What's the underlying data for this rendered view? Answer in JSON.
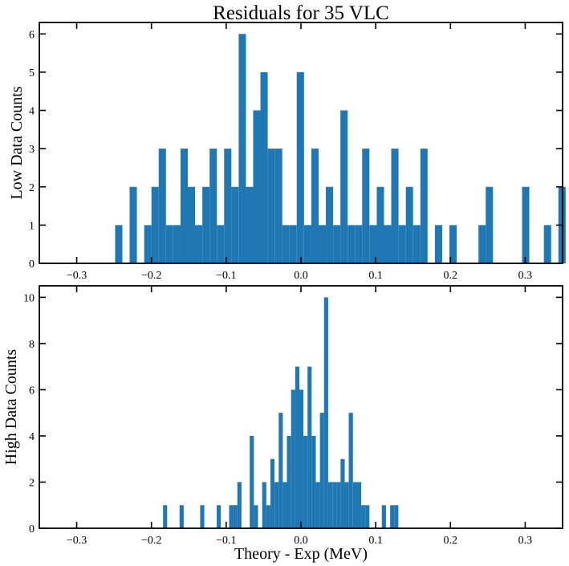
{
  "chart_data": [
    {
      "type": "bar",
      "title": "Residuals for 35 VLC",
      "xlabel": "",
      "ylabel": "Low Data Counts",
      "xlim": [
        -0.35,
        0.35
      ],
      "ylim": [
        0,
        6.3
      ],
      "xticks": [
        -0.3,
        -0.2,
        -0.1,
        0.0,
        0.1,
        0.2,
        0.3
      ],
      "xtick_labels": [
        "−0.3",
        "−0.2",
        "−0.1",
        "0.0",
        "0.1",
        "0.2",
        "0.3"
      ],
      "yticks": [
        0,
        1,
        2,
        3,
        4,
        5,
        6
      ],
      "ytick_labels": [
        "0",
        "1",
        "2",
        "3",
        "4",
        "5",
        "6"
      ],
      "bar_color": "#1f77b4",
      "bin_width": 0.00972,
      "bins_left": [
        -0.2486,
        -0.2292,
        -0.2097,
        -0.2,
        -0.1903,
        -0.1806,
        -0.1708,
        -0.1611,
        -0.1514,
        -0.1417,
        -0.1319,
        -0.1222,
        -0.1125,
        -0.1028,
        -0.0931,
        -0.0833,
        -0.0736,
        -0.0639,
        -0.0542,
        -0.0444,
        -0.0347,
        -0.025,
        -0.0153,
        -0.0056,
        0.0042,
        0.0139,
        0.0236,
        0.0333,
        0.0431,
        0.0528,
        0.0625,
        0.0722,
        0.0819,
        0.0917,
        0.1014,
        0.1111,
        0.1208,
        0.1306,
        0.1403,
        0.15,
        0.1597,
        0.1792,
        0.1986,
        0.2375,
        0.2472,
        0.2958,
        0.325,
        0.3444
      ],
      "values": [
        1,
        2,
        1,
        2,
        3,
        1,
        1,
        3,
        2,
        1,
        2,
        3,
        1,
        3,
        2,
        6,
        2,
        4,
        5,
        3,
        3,
        1,
        1,
        5,
        1,
        3,
        1,
        2,
        1,
        4,
        1,
        1,
        3,
        1,
        2,
        1,
        3,
        1,
        2,
        1,
        3,
        1,
        1,
        1,
        2,
        2,
        1,
        2
      ]
    },
    {
      "type": "bar",
      "title": "",
      "xlabel": "Theory - Exp (MeV)",
      "ylabel": "High Data Counts",
      "xlim": [
        -0.35,
        0.35
      ],
      "ylim": [
        0,
        10.5
      ],
      "xticks": [
        -0.3,
        -0.2,
        -0.1,
        0.0,
        0.1,
        0.2,
        0.3
      ],
      "xtick_labels": [
        "−0.3",
        "−0.2",
        "−0.1",
        "0.0",
        "0.1",
        "0.2",
        "0.3"
      ],
      "yticks": [
        0,
        2,
        4,
        6,
        8,
        10
      ],
      "ytick_labels": [
        "0",
        "2",
        "4",
        "6",
        "8",
        "10"
      ],
      "bar_color": "#1f77b4",
      "bin_width": 0.00553,
      "bins_left": [
        -0.1845,
        -0.1624,
        -0.1348,
        -0.1127,
        -0.0961,
        -0.0906,
        -0.0851,
        -0.0685,
        -0.063,
        -0.0519,
        -0.0464,
        -0.0409,
        -0.0353,
        -0.0298,
        -0.0243,
        -0.0188,
        -0.0132,
        -0.0077,
        -0.0022,
        0.0033,
        0.0088,
        0.0144,
        0.0199,
        0.0254,
        0.0309,
        0.0364,
        0.042,
        0.0475,
        0.053,
        0.0585,
        0.064,
        0.0696,
        0.0751,
        0.0806,
        0.0861,
        0.1082,
        0.1193,
        0.1248
      ],
      "values": [
        1,
        1,
        1,
        1,
        1,
        1,
        2,
        4,
        1,
        2,
        1,
        3,
        2,
        5,
        2,
        4,
        6,
        7,
        6,
        4,
        7,
        4,
        2,
        5,
        10,
        2,
        2,
        2,
        3,
        2,
        5,
        2,
        2,
        1,
        1,
        1,
        1,
        1
      ]
    }
  ]
}
